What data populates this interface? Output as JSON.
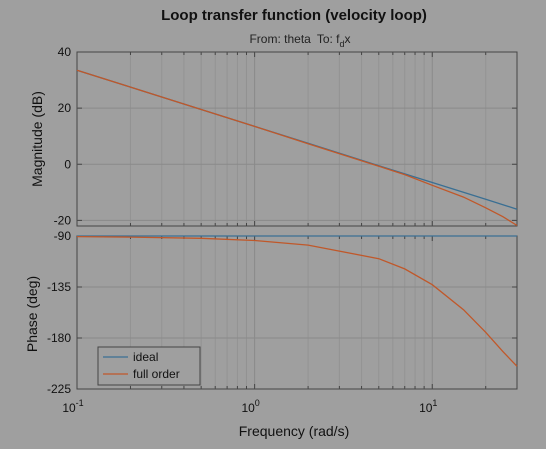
{
  "chart_data": {
    "type": "line",
    "title": "Loop transfer function (velocity loop)",
    "subtitle": {
      "from_label": "From: theta",
      "to_prefix": "To: f",
      "to_subscript": "d",
      "to_suffix": "x"
    },
    "xlabel": "Frequency  (rad/s)",
    "x_scale": "log",
    "xlim": [
      0.1,
      30
    ],
    "x_ticks": [
      {
        "value": 0.1,
        "base": "10",
        "exp": "-1"
      },
      {
        "value": 1,
        "base": "10",
        "exp": "0"
      },
      {
        "value": 10,
        "base": "10",
        "exp": "1"
      }
    ],
    "grid": true,
    "panels": [
      {
        "name": "magnitude",
        "ylabel": "Magnitude (dB)",
        "ylim": [
          -22,
          40
        ],
        "yticks": [
          -20,
          0,
          20,
          40
        ],
        "ytick_labels": [
          "-20",
          "0",
          "20",
          "40"
        ]
      },
      {
        "name": "phase",
        "ylabel": "Phase (deg)",
        "ylim": [
          -225,
          -90
        ],
        "yticks": [
          -225,
          -180,
          -135,
          -90
        ],
        "ytick_labels": [
          "-225",
          "-180",
          "-135",
          "-90"
        ]
      }
    ],
    "legend": {
      "placement": "lower-left of phase panel",
      "entries": [
        "ideal",
        "full order"
      ]
    },
    "colors": {
      "ideal": "#3a6f93",
      "full_order": "#c0582a"
    },
    "series": [
      {
        "name": "ideal",
        "x": [
          0.1,
          0.2,
          0.5,
          1,
          2,
          5,
          10,
          20,
          30
        ],
        "magnitude_db": [
          33.5,
          27.5,
          19.5,
          13.5,
          7.5,
          -0.5,
          -6.5,
          -12.5,
          -16
        ],
        "phase_deg": [
          -90,
          -90,
          -90,
          -90,
          -90,
          -90,
          -90,
          -90,
          -90
        ]
      },
      {
        "name": "full order",
        "x": [
          0.1,
          0.2,
          0.5,
          1,
          2,
          5,
          7,
          10,
          15,
          20,
          25,
          30
        ],
        "magnitude_db": [
          33.5,
          27.5,
          19.5,
          13.5,
          7.3,
          -0.7,
          -3.7,
          -7.5,
          -11.7,
          -15.5,
          -18.7,
          -21.8
        ],
        "phase_deg": [
          -90.5,
          -91,
          -92,
          -94,
          -98,
          -110,
          -119,
          -133,
          -155,
          -175,
          -192,
          -205
        ]
      }
    ]
  }
}
